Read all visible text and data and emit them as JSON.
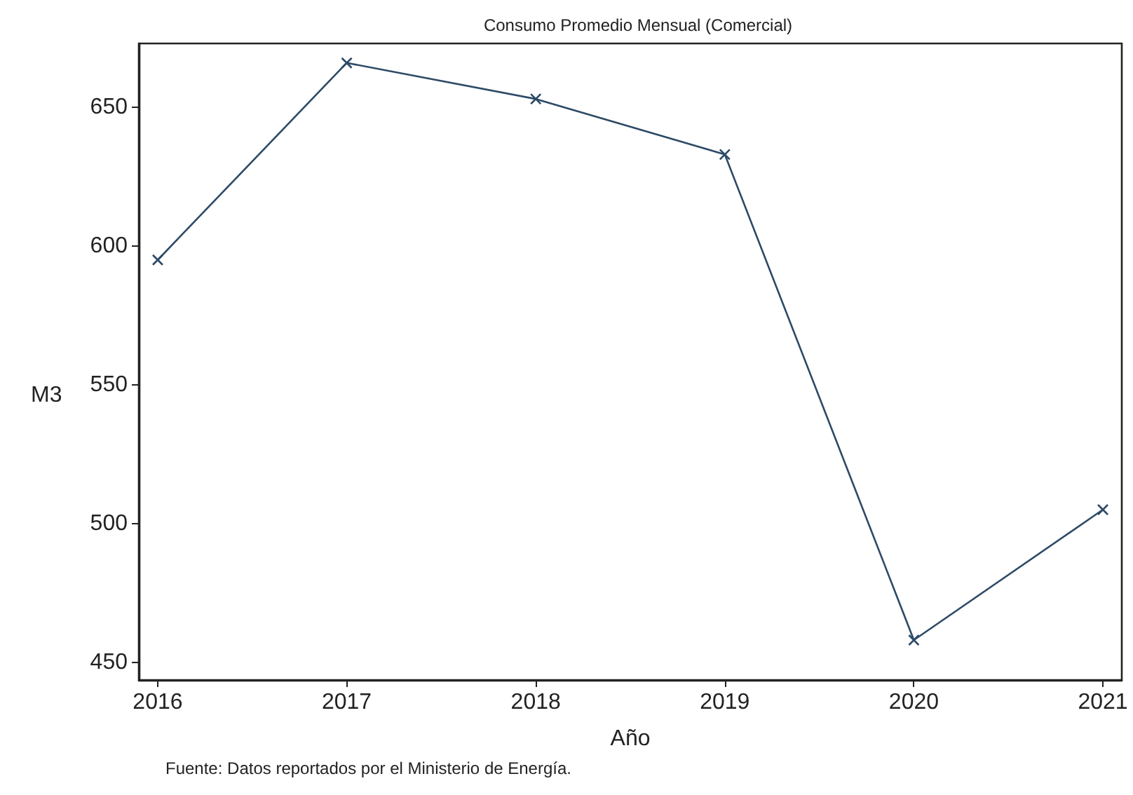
{
  "chart_data": {
    "type": "line",
    "title": "Consumo Promedio Mensual (Comercial)",
    "xlabel": "Año",
    "ylabel": "M3",
    "annotations": [
      "Fuente: Datos reportados por el Ministerio de Energía."
    ],
    "x": [
      2016,
      2017,
      2018,
      2019,
      2020,
      2021
    ],
    "series": [
      {
        "color": "#2d4a66",
        "values": [
          595,
          666,
          653,
          633,
          458,
          505
        ]
      }
    ],
    "xlim": [
      2015.9,
      2021.1
    ],
    "xticks": [
      2016,
      2017,
      2018,
      2019,
      2020,
      2021
    ],
    "ylim": [
      443.6,
      673
    ],
    "yticks": [
      450,
      500,
      550,
      600,
      650
    ],
    "grid": false,
    "marker": "cross",
    "line_style": "solid"
  }
}
